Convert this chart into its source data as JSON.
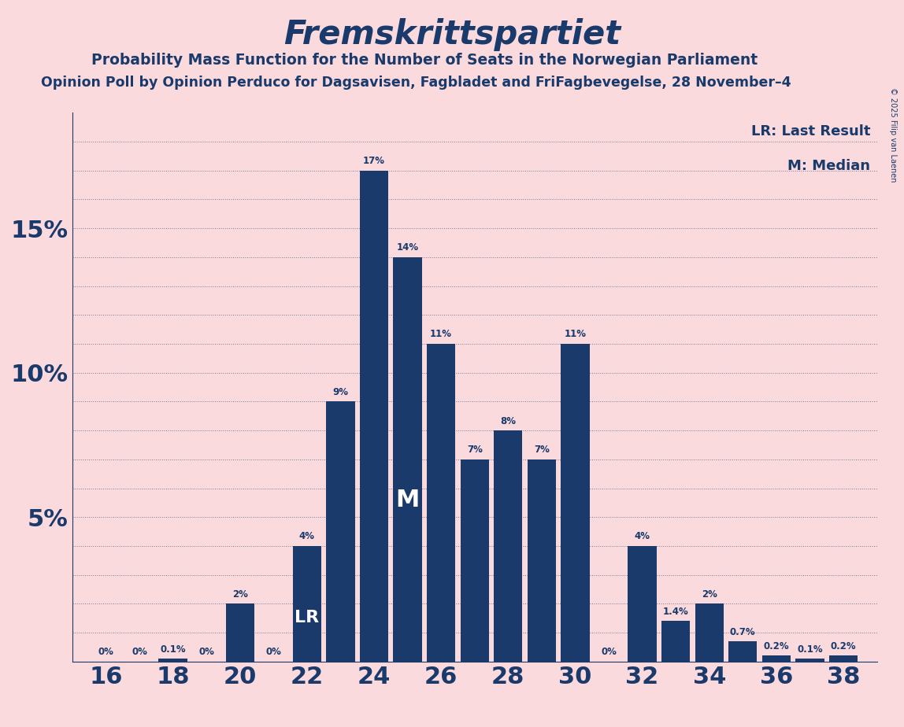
{
  "title": "Fremskrittspartiet",
  "subtitle": "Probability Mass Function for the Number of Seats in the Norwegian Parliament",
  "source": "Opinion Poll by Opinion Perduco for Dagsavisen, Fagbladet and FriFagbevegelse, 28 November–4",
  "copyright": "© 2025 Filip van Laenen",
  "background_color": "#fadadd",
  "bar_color": "#1a3a6b",
  "text_color": "#1a3a6b",
  "seats": [
    16,
    17,
    18,
    19,
    20,
    21,
    22,
    23,
    24,
    25,
    26,
    27,
    28,
    29,
    30,
    31,
    32,
    33,
    34,
    35,
    36,
    37,
    38
  ],
  "probabilities": [
    0.0,
    0.0,
    0.1,
    0.0,
    2.0,
    0.0,
    4.0,
    9.0,
    17.0,
    14.0,
    11.0,
    7.0,
    8.0,
    7.0,
    11.0,
    0.0,
    4.0,
    1.4,
    2.0,
    0.7,
    0.2,
    0.1,
    0.2
  ],
  "labels": [
    "0%",
    "0%",
    "0.1%",
    "0%",
    "2%",
    "0%",
    "4%",
    "9%",
    "17%",
    "14%",
    "11%",
    "7%",
    "8%",
    "7%",
    "11%",
    "0%",
    "4%",
    "1.4%",
    "2%",
    "0.7%",
    "0.2%",
    "0.1%",
    "0.2%"
  ],
  "xlim": [
    15,
    39
  ],
  "ylim": [
    0,
    19
  ],
  "lr_seat": 22,
  "median_seat": 25,
  "lr_label": "LR",
  "median_label": "M",
  "legend_lr": "LR: Last Result",
  "legend_m": "M: Median"
}
